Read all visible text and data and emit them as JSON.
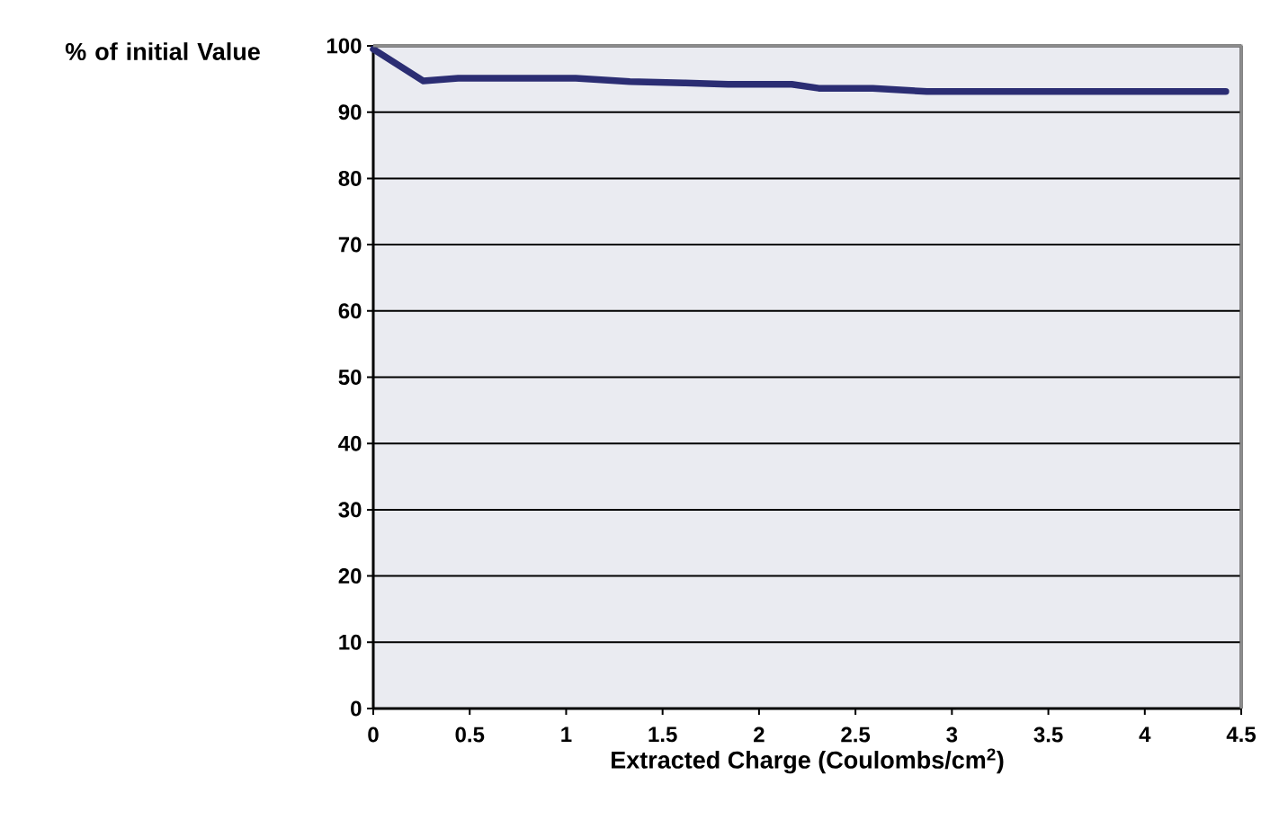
{
  "chart_data": {
    "type": "line",
    "xlabel": "Extracted Charge (Coulombs/cm$^{2}$)",
    "ylabel": "% of initial Value",
    "x": [
      0,
      0.26,
      0.44,
      1.05,
      1.33,
      1.61,
      1.84,
      2.17,
      2.31,
      2.59,
      2.87,
      3.19,
      4.42
    ],
    "series": [
      {
        "color": "#2b2d73",
        "values": [
          99.5,
          94.7,
          95.1,
          95.1,
          94.6,
          94.4,
          94.2,
          94.2,
          93.6,
          93.6,
          93.1,
          93.1,
          93.1
        ]
      }
    ],
    "xlim": [
      0,
      4.5
    ],
    "ylim": [
      0,
      100
    ],
    "xticks": [
      0,
      0.5,
      1,
      1.5,
      2,
      2.5,
      3,
      3.5,
      4,
      4.5
    ],
    "yticks": [
      0,
      10,
      20,
      30,
      40,
      50,
      60,
      70,
      80,
      90,
      100
    ],
    "grid": "y"
  }
}
